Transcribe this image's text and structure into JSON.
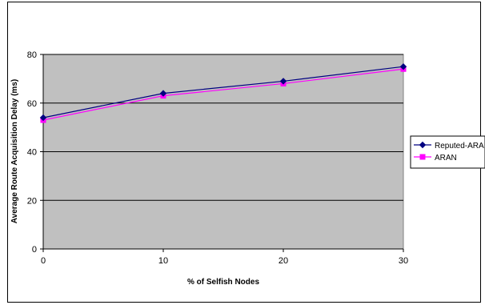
{
  "chart_data": {
    "type": "line",
    "title": "",
    "xlabel": "% of Selfish Nodes",
    "ylabel": "Average Route Acquisition Delay   (ms)",
    "x": [
      0,
      10,
      20,
      30
    ],
    "x_tick_labels": [
      "0",
      "10",
      "20",
      "30"
    ],
    "y_tick_labels": [
      "0",
      "20",
      "40",
      "60",
      "80"
    ],
    "ylim": [
      0,
      80
    ],
    "xlim": [
      0,
      30
    ],
    "grid": "horizontal",
    "plot_background": "#c0c0c0",
    "legend_position": "right",
    "series": [
      {
        "name": "Reputed-ARAN",
        "values": [
          54,
          64,
          69,
          75
        ],
        "color": "#000080",
        "marker": "diamond"
      },
      {
        "name": "ARAN",
        "values": [
          53,
          63,
          68,
          74
        ],
        "color": "#ff00ff",
        "marker": "square"
      }
    ]
  }
}
